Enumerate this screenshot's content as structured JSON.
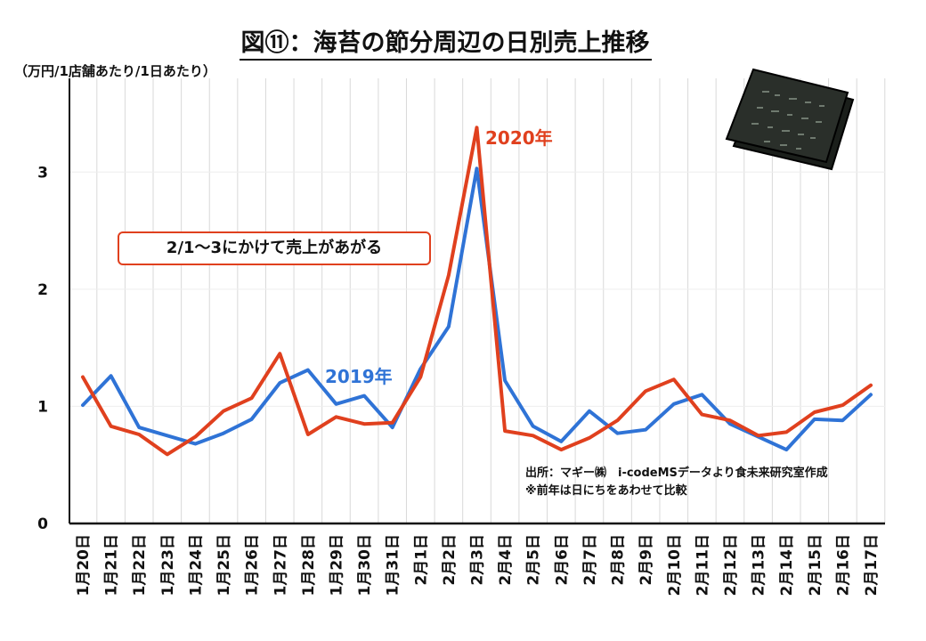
{
  "title": "図⑪：海苔の節分周辺の日別売上推移",
  "unit_label": "（万円/1店舗あたり/1日あたり）",
  "callout": "2/1～3にかけて売上があがる",
  "source_lines": [
    "出所：マギー㈱　i-codeMSデータより食未来研究室作成",
    "※前年は日にちをあわせて比較"
  ],
  "colors": {
    "series_2019": "#2f73d6",
    "series_2020": "#e0401e",
    "grid": "#d9d9d9",
    "axis": "#111111"
  },
  "icons": {
    "nori": "nori-seaweed-sheets-icon"
  },
  "chart_data": {
    "type": "line",
    "title": "図⑪：海苔の節分周辺の日別売上推移",
    "ylabel": "（万円/1店舗あたり/1日あたり）",
    "xlabel": "",
    "ylim": [
      0,
      3.8
    ],
    "yticks": [
      0,
      1,
      2,
      3
    ],
    "grid": "vertical",
    "categories": [
      "1月20日",
      "1月21日",
      "1月22日",
      "1月23日",
      "1月24日",
      "1月25日",
      "1月26日",
      "1月27日",
      "1月28日",
      "1月29日",
      "1月30日",
      "1月31日",
      "2月1日",
      "2月2日",
      "2月3日",
      "2月4日",
      "2月5日",
      "2月6日",
      "2月7日",
      "2月8日",
      "2月9日",
      "2月10日",
      "2月11日",
      "2月12日",
      "2月13日",
      "2月14日",
      "2月15日",
      "2月16日",
      "2月17日"
    ],
    "series": [
      {
        "name": "2019年",
        "values": [
          1.01,
          1.26,
          0.82,
          0.75,
          0.68,
          0.77,
          0.89,
          1.2,
          1.31,
          1.02,
          1.09,
          0.82,
          1.32,
          1.68,
          3.03,
          1.22,
          0.83,
          0.7,
          0.96,
          0.77,
          0.8,
          1.02,
          1.1,
          0.85,
          0.74,
          0.63,
          0.89,
          0.88,
          1.1
        ]
      },
      {
        "name": "2020年",
        "values": [
          1.25,
          0.83,
          0.76,
          0.59,
          0.74,
          0.96,
          1.07,
          1.45,
          0.76,
          0.91,
          0.85,
          0.86,
          1.25,
          2.12,
          3.38,
          0.79,
          0.75,
          0.63,
          0.73,
          0.88,
          1.13,
          1.23,
          0.93,
          0.88,
          0.75,
          0.78,
          0.95,
          1.01,
          1.18
        ]
      }
    ]
  }
}
